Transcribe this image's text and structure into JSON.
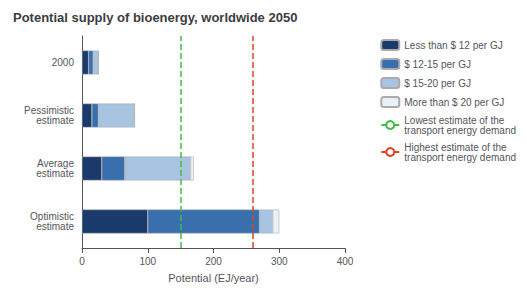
{
  "chart_data": {
    "type": "bar",
    "orientation": "horizontal",
    "stacked": true,
    "title": "Potential supply of bioenergy, worldwide 2050",
    "xlabel": "Potential (EJ/year)",
    "categories": [
      "Optimistic\nestimate",
      "Average\nestimate",
      "Pessimistic\nestimate",
      "2000"
    ],
    "series": [
      {
        "name": "Less than $ 12 per GJ",
        "color": "#1a3a6b",
        "values": [
          100,
          30,
          15,
          10
        ]
      },
      {
        "name": "$ 12-15 per GJ",
        "color": "#3a6fad",
        "values": [
          170,
          35,
          10,
          7
        ]
      },
      {
        "name": "$ 15-20 per GJ",
        "color": "#a8c4e0",
        "values": [
          20,
          100,
          55,
          8
        ]
      },
      {
        "name": "More than $ 20 per GJ",
        "color": "#e8f0f8",
        "values": [
          10,
          5,
          0,
          0
        ]
      }
    ],
    "reference_lines": [
      {
        "name": "Lowest estimate of the\ntransport energy demand",
        "value": 150,
        "color": "#44bb44",
        "line_style": "dashed"
      },
      {
        "name": "Highest estimate of the\ntransport energy demand",
        "value": 260,
        "color": "#dd4422",
        "line_style": "dashed"
      }
    ],
    "xlim": [
      0,
      400
    ],
    "xticks": [
      0,
      100,
      200,
      300,
      400
    ],
    "grid": false,
    "legend": "right"
  }
}
